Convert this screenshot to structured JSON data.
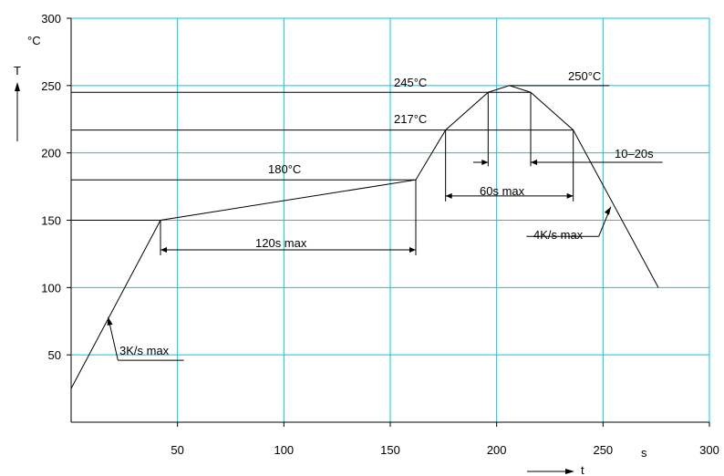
{
  "chart_data": {
    "type": "line",
    "title": "",
    "xlabel": "t",
    "ylabel": "T",
    "xunit": "s",
    "yunit": "°C",
    "xlim": [
      0,
      300
    ],
    "ylim": [
      0,
      300
    ],
    "xticks": [
      50,
      100,
      150,
      200,
      250,
      300
    ],
    "yticks": [
      50,
      100,
      150,
      200,
      250,
      300
    ],
    "grid": true,
    "grid_color": "#00c8e8",
    "series": [
      {
        "x": [
          0,
          42,
          162,
          176,
          196,
          206,
          216,
          236,
          276
        ],
        "y": [
          25,
          150,
          180,
          217,
          245,
          250,
          245,
          217,
          100
        ]
      }
    ],
    "annotations": {
      "t250": "250°C",
      "t245": "245°C",
      "t217": "217°C",
      "t180": "180°C",
      "w120": "120s max",
      "w60": "60s max",
      "w1020": "10–20s",
      "r3": "3K/s max",
      "r4": "4K/s max"
    }
  }
}
